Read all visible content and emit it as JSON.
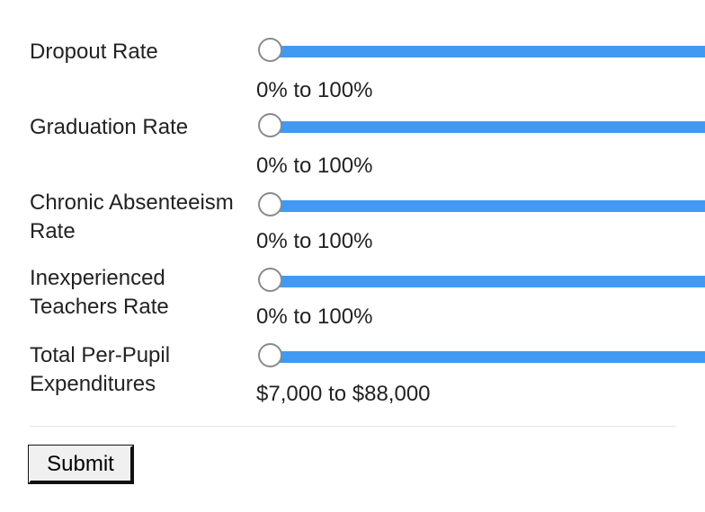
{
  "filters": [
    {
      "label": "Dropout Rate",
      "range": "0% to 100%"
    },
    {
      "label": "Graduation Rate",
      "range": "0% to 100%"
    },
    {
      "label": "Chronic Absenteeism Rate",
      "range": "0% to 100%"
    },
    {
      "label": "Inexperienced Teachers Rate",
      "range": "0% to 100%"
    },
    {
      "label": "Total Per-Pupil Expenditures",
      "range": "$7,000 to $88,000"
    }
  ],
  "submit_label": "Submit",
  "colors": {
    "track": "#4299f2",
    "handle_border": "#8a8a8a"
  }
}
